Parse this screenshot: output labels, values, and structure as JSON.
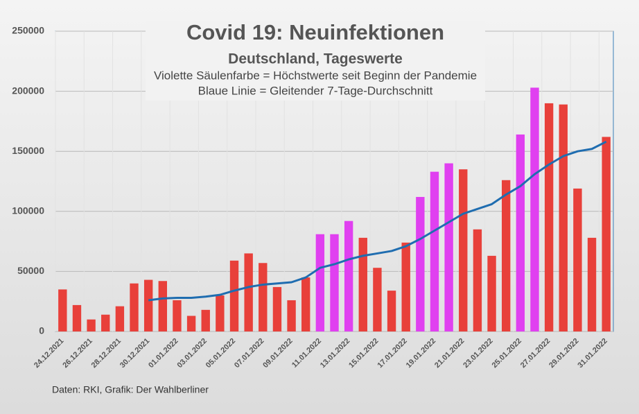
{
  "chart_data": {
    "type": "bar",
    "title": "Covid 19: Neuinfektionen",
    "subtitle": "Deutschland, Tageswerte",
    "notes": [
      "Violette Säulenfarbe = Höchstwerte seit Beginn der Pandemie",
      "Blaue Linie = Gleitender 7-Tage-Durchschnitt"
    ],
    "source": "Daten: RKI, Grafik: Der Wahlberliner",
    "categories": [
      "24.12.2021",
      null,
      "26.12.2021",
      null,
      "28.12.2021",
      null,
      "30.12.2021",
      null,
      "01.01.2022",
      null,
      "03.01.2022",
      null,
      "05.01.2022",
      null,
      "07.01.2022",
      null,
      "09.01.2022",
      null,
      "11.01.2022",
      null,
      "13.01.2022",
      null,
      "15.01.2022",
      null,
      "17.01.2022",
      null,
      "19.01.2022",
      null,
      "21.01.2022",
      null,
      "23.01.2022",
      null,
      "25.01.2022",
      null,
      "27.01.2022",
      null,
      "29.01.2022",
      null,
      "31.01.2022"
    ],
    "values": [
      35000,
      22000,
      10000,
      14000,
      21000,
      40000,
      43000,
      42000,
      26000,
      13000,
      18000,
      30000,
      59000,
      65000,
      57000,
      37000,
      26000,
      45000,
      81000,
      81000,
      92000,
      78000,
      53000,
      34000,
      74000,
      112000,
      133000,
      140000,
      135000,
      85000,
      63000,
      126000,
      164000,
      203000,
      190000,
      189000,
      119000,
      78000,
      162000
    ],
    "colors": [
      "#e8403a",
      "#e8403a",
      "#e8403a",
      "#e8403a",
      "#e8403a",
      "#e8403a",
      "#e8403a",
      "#e8403a",
      "#e8403a",
      "#e8403a",
      "#e8403a",
      "#e8403a",
      "#e8403a",
      "#e8403a",
      "#e8403a",
      "#e8403a",
      "#e8403a",
      "#e8403a",
      "#e040f0",
      "#e040f0",
      "#e040f0",
      "#e8403a",
      "#e8403a",
      "#e8403a",
      "#e8403a",
      "#e040f0",
      "#e040f0",
      "#e040f0",
      "#e8403a",
      "#e8403a",
      "#e8403a",
      "#e8403a",
      "#e040f0",
      "#e040f0",
      "#e8403a",
      "#e8403a",
      "#e8403a",
      "#e8403a",
      "#e8403a"
    ],
    "line": {
      "color": "#1f6db0",
      "values": [
        null,
        null,
        null,
        null,
        null,
        null,
        26000,
        27500,
        28000,
        28000,
        29000,
        30500,
        34000,
        37000,
        39000,
        40000,
        41000,
        45000,
        53000,
        56000,
        60000,
        63000,
        65000,
        67000,
        71000,
        77000,
        84000,
        91000,
        98000,
        102000,
        106000,
        114000,
        121000,
        131000,
        139000,
        146000,
        150000,
        152000,
        158000
      ]
    },
    "ylim": [
      0,
      250000
    ],
    "yticks": [
      0,
      50000,
      100000,
      150000,
      200000,
      250000
    ],
    "grid": true
  }
}
